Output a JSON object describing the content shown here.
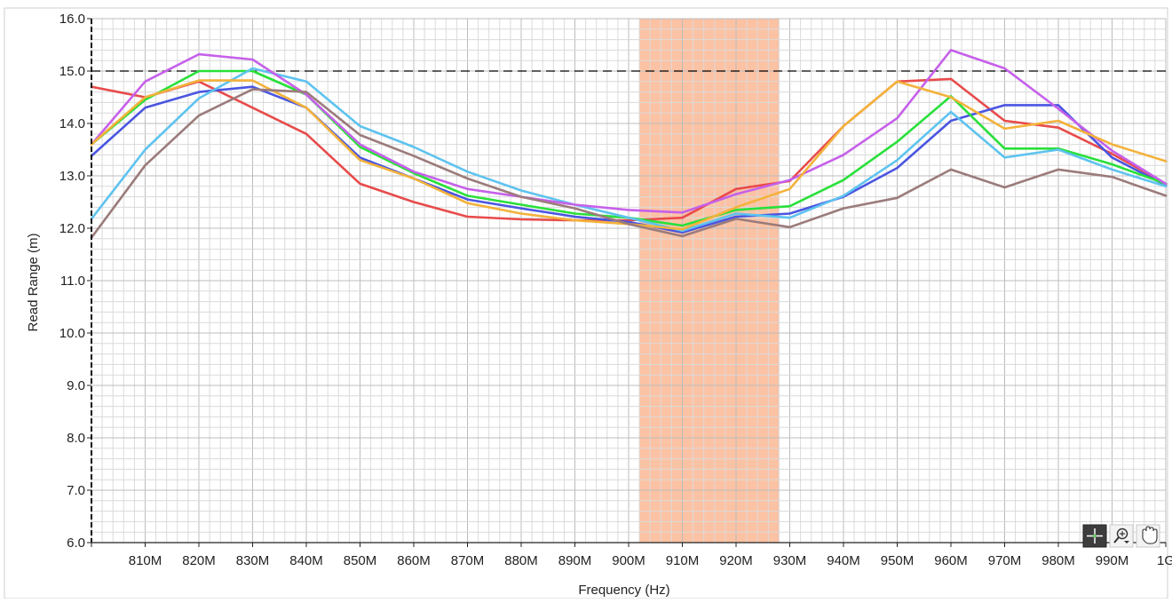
{
  "chart_data": {
    "type": "line",
    "title": "",
    "xlabel": "Frequency (Hz)",
    "ylabel": "Read Range (m)",
    "xlim": [
      800,
      1000
    ],
    "ylim": [
      6,
      16
    ],
    "x_ticks": [
      800,
      810,
      820,
      830,
      840,
      850,
      860,
      870,
      880,
      890,
      900,
      910,
      920,
      930,
      940,
      950,
      960,
      970,
      980,
      990,
      1000
    ],
    "x_tick_labels": [
      "",
      "810M",
      "820M",
      "830M",
      "840M",
      "850M",
      "860M",
      "870M",
      "880M",
      "890M",
      "900M",
      "910M",
      "920M",
      "930M",
      "940M",
      "950M",
      "960M",
      "970M",
      "980M",
      "990M",
      "1G"
    ],
    "y_ticks": [
      6,
      7,
      8,
      9,
      10,
      11,
      12,
      13,
      14,
      15,
      16
    ],
    "y_tick_labels": [
      "6.0",
      "7.0",
      "8.0",
      "9.0",
      "10.0",
      "11.0",
      "12.0",
      "13.0",
      "14.0",
      "15.0",
      "16.0"
    ],
    "grid": true,
    "reference_line": {
      "y": 15.0,
      "style": "dashed",
      "color": "#000000"
    },
    "highlight_band": {
      "x_start": 902,
      "x_end": 928,
      "color": "#fcc2a4"
    },
    "x": [
      800,
      810,
      820,
      830,
      840,
      850,
      860,
      870,
      880,
      890,
      900,
      910,
      920,
      930,
      940,
      950,
      960,
      970,
      980,
      990,
      1000
    ],
    "series": [
      {
        "color": "#e84b4b",
        "values": [
          14.7,
          14.5,
          14.8,
          14.3,
          13.8,
          12.85,
          12.5,
          12.22,
          12.17,
          12.15,
          12.15,
          12.2,
          12.75,
          12.9,
          13.95,
          14.8,
          14.85,
          14.05,
          13.92,
          13.42,
          12.85
        ]
      },
      {
        "color": "#4a55e0",
        "values": [
          13.38,
          14.3,
          14.6,
          14.7,
          14.3,
          13.35,
          12.95,
          12.55,
          12.38,
          12.22,
          12.12,
          11.92,
          12.22,
          12.28,
          12.6,
          13.15,
          14.05,
          14.35,
          14.35,
          13.35,
          12.82
        ]
      },
      {
        "color": "#29e03a",
        "values": [
          13.6,
          14.45,
          15.0,
          15.0,
          14.55,
          13.55,
          13.05,
          12.62,
          12.45,
          12.28,
          12.2,
          12.05,
          12.35,
          12.42,
          12.92,
          13.65,
          14.52,
          13.52,
          13.52,
          13.22,
          12.85
        ]
      },
      {
        "color": "#5ec3ef",
        "values": [
          12.18,
          13.5,
          14.48,
          15.05,
          14.8,
          13.95,
          13.55,
          13.08,
          12.72,
          12.45,
          12.2,
          11.95,
          12.28,
          12.2,
          12.62,
          13.3,
          14.22,
          13.35,
          13.5,
          13.12,
          12.8
        ]
      },
      {
        "color": "#c660ea",
        "values": [
          13.6,
          14.8,
          15.32,
          15.22,
          14.55,
          13.6,
          13.08,
          12.75,
          12.6,
          12.45,
          12.35,
          12.3,
          12.65,
          12.92,
          13.4,
          14.1,
          15.4,
          15.05,
          14.28,
          13.48,
          12.85
        ]
      },
      {
        "color": "#f3b23b",
        "values": [
          13.6,
          14.5,
          14.82,
          14.82,
          14.3,
          13.3,
          12.95,
          12.48,
          12.28,
          12.15,
          12.08,
          11.98,
          12.4,
          12.75,
          13.95,
          14.8,
          14.5,
          13.9,
          14.05,
          13.6,
          13.28
        ]
      },
      {
        "color": "#9b7b7b",
        "values": [
          11.82,
          13.2,
          14.15,
          14.65,
          14.6,
          13.78,
          13.38,
          12.95,
          12.6,
          12.38,
          12.08,
          11.85,
          12.18,
          12.02,
          12.38,
          12.58,
          13.12,
          12.78,
          13.12,
          12.98,
          12.62
        ]
      }
    ]
  },
  "toolbar": {
    "cursor_tool": "cursor-crosshair-icon",
    "zoom_tool": "zoom-magnifier-icon",
    "pan_tool": "pan-hand-icon"
  }
}
